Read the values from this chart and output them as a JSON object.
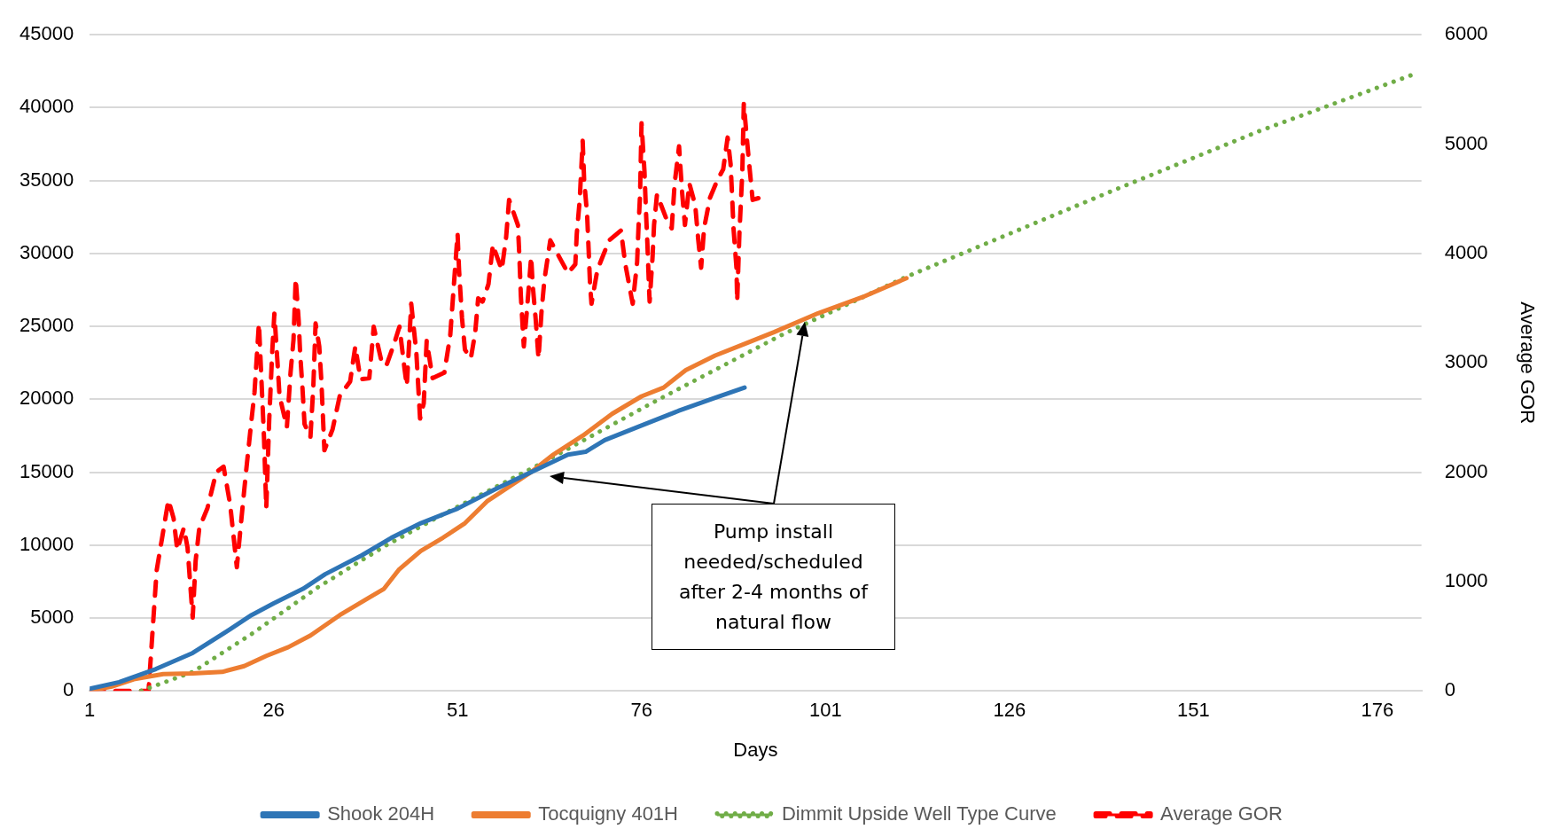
{
  "chart_data": {
    "type": "line",
    "xlabel": "Days",
    "y2label": "Average GOR",
    "xlim": [
      1,
      182
    ],
    "xticks": [
      1,
      26,
      51,
      76,
      101,
      126,
      151,
      176
    ],
    "ylim": [
      0,
      45000
    ],
    "yticks": [
      0,
      5000,
      10000,
      15000,
      20000,
      25000,
      30000,
      35000,
      40000,
      45000
    ],
    "y2lim": [
      0,
      6000
    ],
    "y2ticks": [
      0,
      1000,
      2000,
      3000,
      4000,
      5000,
      6000
    ],
    "grid": "y",
    "legend": "bottom",
    "marker": "none",
    "annotations": [
      "Pump install needed/scheduled after 2-4 months of natural flow"
    ],
    "series": [
      {
        "name": "Shook 204H",
        "color": "#2e75b6",
        "line_style": "solid",
        "x": [
          1,
          5,
          10,
          15,
          20,
          23,
          26,
          30,
          33,
          38,
          42,
          46,
          51,
          56,
          61,
          66,
          68.4,
          71,
          76,
          81,
          86,
          90
        ],
        "values": [
          150,
          600,
          1500,
          2600,
          4200,
          5200,
          6000,
          7000,
          8000,
          9300,
          10500,
          11500,
          12500,
          13800,
          15000,
          16200,
          16400,
          17200,
          18200,
          19200,
          20100,
          20800
        ]
      },
      {
        "name": "Tocquigny 401H",
        "color": "#ed7d31",
        "line_style": "solid",
        "x": [
          1,
          4,
          7,
          11,
          15,
          19,
          22,
          25,
          28,
          31,
          35,
          39,
          41,
          43,
          46,
          49,
          52,
          55,
          58,
          61,
          64,
          68,
          72,
          76,
          79,
          82,
          86,
          90,
          94,
          100,
          106,
          112
        ],
        "values": [
          0,
          300,
          800,
          1150,
          1200,
          1300,
          1700,
          2400,
          3000,
          3800,
          5200,
          6400,
          7000,
          8300,
          9600,
          10500,
          11500,
          13000,
          14000,
          15000,
          16200,
          17500,
          19000,
          20200,
          20800,
          22000,
          23000,
          23800,
          24600,
          25900,
          27000,
          28300
        ]
      },
      {
        "name": "Dimmit Upside Well Type Curve",
        "color": "#70ad47",
        "line_style": "dotted",
        "x": [
          8,
          15,
          23,
          32,
          41,
          49,
          62,
          78,
          95,
          112,
          140,
          160,
          181
        ],
        "values": [
          0,
          1300,
          3900,
          7100,
          9900,
          12100,
          15500,
          19900,
          24400,
          28400,
          34300,
          38400,
          42300
        ]
      },
      {
        "name": "Average GOR",
        "color": "#ff0000",
        "line_style": "dashed",
        "axis": "y2",
        "x": [
          1,
          9,
          10.1,
          11.7,
          12.4,
          12.9,
          13.8,
          14.3,
          15,
          15.4,
          15.9,
          17,
          18.2,
          19.2,
          20.1,
          21,
          21.5,
          22.2,
          22.9,
          23.4,
          24,
          24.3,
          24.7,
          25,
          25.4,
          25.8,
          26.1,
          26.5,
          26.8,
          27.8,
          28.3,
          28.7,
          29,
          29.4,
          29.6,
          29.9,
          30.2,
          31,
          31.4,
          31.7,
          32.2,
          32.5,
          32.9,
          34,
          35,
          36.4,
          37.1,
          37.8,
          39,
          39.6,
          40.6,
          41.3,
          42.4,
          43.1,
          43.8,
          44.1,
          44.7,
          45.4,
          45.9,
          46.4,
          46.8,
          47.6,
          49.2,
          50,
          51,
          51.2,
          51.6,
          52,
          52.8,
          53.4,
          53.8,
          54.4,
          55.2,
          55.8,
          56.2,
          57,
          57.6,
          58,
          59.2,
          59.4,
          59.6,
          60,
          60.4,
          61,
          61.2,
          61.6,
          62,
          62.4,
          62.8,
          63.6,
          64.8,
          66,
          67,
          67.2,
          67.6,
          68,
          68.2,
          68.6,
          68.8,
          69,
          69.2,
          70,
          71.6,
          73.2,
          73.8,
          74.8,
          75.4,
          75.6,
          75.8,
          76,
          76.4,
          76.6,
          76.8,
          77,
          77.1,
          77.5,
          77.7,
          78.1,
          79.3,
          80.1,
          80.5,
          81.1,
          81.5,
          81.9,
          82.5,
          83.3,
          83.7,
          84.1,
          84.5,
          85.3,
          86.3,
          87.1,
          87.7,
          88.1,
          88.3,
          88.5,
          88.9,
          89,
          89.3,
          89.7,
          89.9,
          90.3,
          90.7,
          91.1,
          92.1
        ],
        "values": [
          0,
          0,
          1100,
          1745,
          1580,
          1290,
          1490,
          1310,
          670,
          1190,
          1490,
          1670,
          2000,
          2050,
          1700,
          1130,
          1490,
          1970,
          2420,
          2730,
          3360,
          2910,
          2300,
          1670,
          2480,
          3090,
          3450,
          3030,
          2700,
          2410,
          2910,
          3210,
          3770,
          3390,
          3090,
          2790,
          2440,
          2320,
          2790,
          3360,
          3150,
          2820,
          2200,
          2390,
          2700,
          2830,
          3150,
          2850,
          2860,
          3330,
          3030,
          2970,
          3180,
          3330,
          2940,
          2790,
          3540,
          3090,
          2490,
          2630,
          3200,
          2860,
          2910,
          3250,
          4180,
          3850,
          3410,
          3120,
          3040,
          3280,
          3590,
          3560,
          3720,
          4080,
          4000,
          3850,
          4150,
          4490,
          4260,
          3970,
          3610,
          3150,
          3460,
          3970,
          3720,
          3410,
          3040,
          3460,
          3760,
          4120,
          3970,
          3820,
          3900,
          4180,
          4490,
          5030,
          4670,
          4360,
          4050,
          3720,
          3540,
          3850,
          4120,
          4210,
          3900,
          3540,
          3920,
          4260,
          4540,
          5190,
          4750,
          4390,
          4080,
          3720,
          3560,
          3970,
          4260,
          4540,
          4330,
          4230,
          4640,
          4980,
          4570,
          4260,
          4640,
          4440,
          4130,
          3870,
          4230,
          4510,
          4670,
          4770,
          5060,
          4820,
          4540,
          4230,
          3870,
          3560,
          4180,
          4750,
          5370,
          5060,
          4770,
          4490,
          4510
        ]
      }
    ]
  }
}
